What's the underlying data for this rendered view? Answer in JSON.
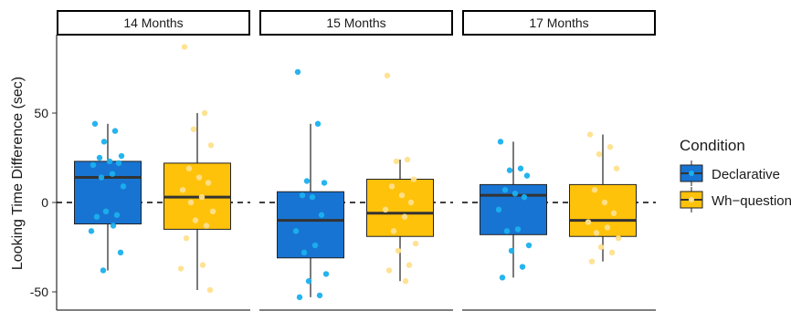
{
  "chart_data": {
    "type": "box",
    "ylabel": "Looking Time Difference (sec)",
    "ylim": [
      -55,
      95
    ],
    "yticks": [
      -50,
      0,
      50
    ],
    "reference_line": 0,
    "legend": {
      "title": "Condition",
      "position": "right",
      "entries": [
        {
          "label": "Declarative",
          "fill": "#1874d2",
          "point": "#1ab0ee"
        },
        {
          "label": "Wh−question",
          "fill": "#ffc20a",
          "point": "#ffe08c"
        }
      ]
    },
    "panels": [
      {
        "title": "14 Months",
        "boxes": [
          {
            "condition": "Declarative",
            "min": -38,
            "q1": -12,
            "median": 14,
            "q3": 23,
            "max": 44,
            "points": [
              44,
              40,
              34,
              26,
              25,
              23,
              22,
              21,
              16,
              14,
              9,
              -5,
              -7,
              -8,
              -13,
              -16,
              -28,
              -38
            ]
          },
          {
            "condition": "Wh−question",
            "min": -49,
            "q1": -15,
            "median": 3,
            "q3": 22,
            "max": 50,
            "points": [
              87,
              50,
              41,
              32,
              19,
              14,
              11,
              7,
              3,
              0,
              -5,
              -10,
              -13,
              -20,
              -35,
              -37,
              -49
            ]
          }
        ]
      },
      {
        "title": "15 Months",
        "boxes": [
          {
            "condition": "Declarative",
            "min": -53,
            "q1": -31,
            "median": -10,
            "q3": 6,
            "max": 44,
            "points": [
              73,
              44,
              12,
              11,
              4,
              3,
              -7,
              -16,
              -24,
              -28,
              -40,
              -44,
              -52,
              -53
            ]
          },
          {
            "condition": "Wh−question",
            "min": -44,
            "q1": -19,
            "median": -6,
            "q3": 13,
            "max": 24,
            "points": [
              71,
              24,
              23,
              13,
              9,
              4,
              0,
              -4,
              -8,
              -16,
              -23,
              -27,
              -35,
              -38,
              -44
            ]
          }
        ]
      },
      {
        "title": "17 Months",
        "boxes": [
          {
            "condition": "Declarative",
            "min": -42,
            "q1": -18,
            "median": 4,
            "q3": 10,
            "max": 34,
            "points": [
              34,
              19,
              18,
              15,
              7,
              5,
              3,
              -4,
              -15,
              -16,
              -24,
              -27,
              -36,
              -42
            ]
          },
          {
            "condition": "Wh−question",
            "min": -33,
            "q1": -19,
            "median": -10,
            "q3": 10,
            "max": 38,
            "points": [
              38,
              31,
              27,
              19,
              7,
              0,
              -6,
              -11,
              -14,
              -17,
              -20,
              -25,
              -28,
              -33
            ]
          }
        ]
      }
    ]
  }
}
